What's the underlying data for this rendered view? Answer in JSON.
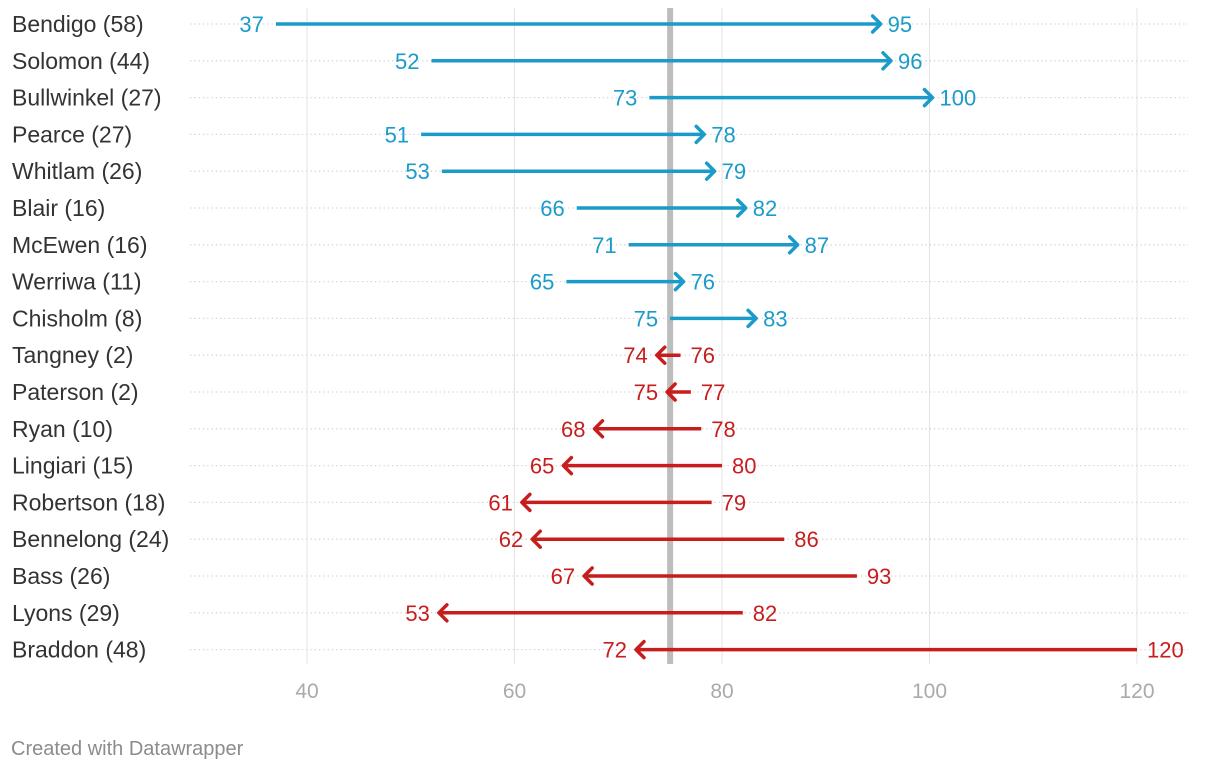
{
  "chart_data": {
    "type": "arrow",
    "xlim": [
      28,
      125
    ],
    "ticks": [
      40,
      60,
      80,
      100,
      120
    ],
    "reference_line": 75,
    "rows": [
      {
        "label": "Bendigo (58)",
        "from": 37,
        "to": 95,
        "from_label": "37",
        "to_label": "95"
      },
      {
        "label": "Solomon (44)",
        "from": 52,
        "to": 96,
        "from_label": "52",
        "to_label": "96"
      },
      {
        "label": "Bullwinkel (27)",
        "from": 73,
        "to": 100,
        "from_label": "73",
        "to_label": "100"
      },
      {
        "label": "Pearce (27)",
        "from": 51,
        "to": 78,
        "from_label": "51",
        "to_label": "78"
      },
      {
        "label": "Whitlam (26)",
        "from": 53,
        "to": 79,
        "from_label": "53",
        "to_label": "79"
      },
      {
        "label": "Blair (16)",
        "from": 66,
        "to": 82,
        "from_label": "66",
        "to_label": "82"
      },
      {
        "label": "McEwen (16)",
        "from": 71,
        "to": 87,
        "from_label": "71",
        "to_label": "87"
      },
      {
        "label": "Werriwa (11)",
        "from": 65,
        "to": 76,
        "from_label": "65",
        "to_label": "76"
      },
      {
        "label": "Chisholm (8)",
        "from": 75,
        "to": 83,
        "from_label": "75",
        "to_label": "83"
      },
      {
        "label": "Tangney (2)",
        "from": 76,
        "to": 74,
        "from_label": "76",
        "to_label": "74"
      },
      {
        "label": "Paterson (2)",
        "from": 77,
        "to": 75,
        "from_label": "77",
        "to_label": "75"
      },
      {
        "label": "Ryan (10)",
        "from": 78,
        "to": 68,
        "from_label": "78",
        "to_label": "68"
      },
      {
        "label": "Lingiari (15)",
        "from": 80,
        "to": 65,
        "from_label": "80",
        "to_label": "65"
      },
      {
        "label": "Robertson (18)",
        "from": 79,
        "to": 61,
        "from_label": "79",
        "to_label": "61"
      },
      {
        "label": "Bennelong (24)",
        "from": 86,
        "to": 62,
        "from_label": "86",
        "to_label": "62"
      },
      {
        "label": "Bass (26)",
        "from": 93,
        "to": 67,
        "from_label": "93",
        "to_label": "67"
      },
      {
        "label": "Lyons (29)",
        "from": 82,
        "to": 53,
        "from_label": "82",
        "to_label": "53"
      },
      {
        "label": "Braddon (48)",
        "from": 120,
        "to": 72,
        "from_label": "120",
        "to_label": "72"
      }
    ],
    "colors": {
      "increase": "#1b9bc9",
      "decrease": "#c71e1d",
      "reference": "#bdbdbd",
      "grid": "#e3e3e3",
      "row_dots": "#d4d4d4"
    }
  },
  "footer": {
    "credit": "Created with Datawrapper"
  }
}
